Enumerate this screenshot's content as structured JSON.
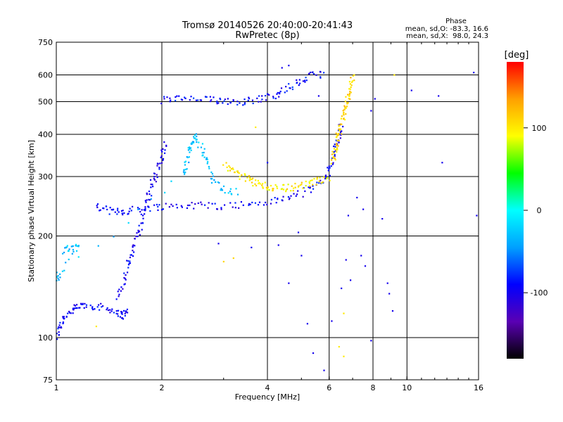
{
  "chart_data": {
    "type": "scatter",
    "title": "Tromsø 20140526 20:40:00-20:41:43",
    "subtitle": "RwPretec (8p)",
    "xlabel": "Frequency [MHz]",
    "ylabel": "Stationary phase Virtual Height [km]",
    "xscale": "log",
    "yscale": "log",
    "xlim": [
      1,
      16
    ],
    "ylim": [
      75,
      750
    ],
    "xticks": [
      1,
      2,
      4,
      6,
      8,
      10,
      16
    ],
    "xtick_labels": [
      "1",
      "2",
      "4",
      "6",
      "8",
      "10",
      "16"
    ],
    "yticks": [
      75,
      100,
      200,
      300,
      400,
      500,
      600,
      750
    ],
    "ytick_labels": [
      "75",
      "100",
      "200",
      "300",
      "400",
      "500",
      "600",
      "750"
    ],
    "x_gridlines": [
      2,
      4,
      6,
      8,
      10
    ],
    "y_gridlines": [
      100,
      200,
      300,
      400,
      500,
      600
    ],
    "grid": true,
    "phase_stats": {
      "heading": "Phase",
      "line_o": "mean, sd,O: -83.3, 16.6",
      "line_x": "mean, sd,X:  98.0, 24.3"
    },
    "colorbar": {
      "label": "[deg]",
      "range": [
        -180,
        180
      ],
      "ticks": [
        100,
        0,
        -100
      ],
      "tick_labels": [
        "100",
        "0",
        "-100"
      ],
      "colors": [
        "#000000",
        "#5a00b4",
        "#0000ff",
        "#00a0ff",
        "#00ffff",
        "#00ff00",
        "#ffff00",
        "#ffa000",
        "#ff0000"
      ]
    },
    "traces": [
      {
        "id": "low-cusp",
        "phase": -95,
        "points": [
          [
            1.0,
            100
          ],
          [
            1.02,
            108
          ],
          [
            1.05,
            115
          ],
          [
            1.1,
            120
          ],
          [
            1.15,
            123
          ],
          [
            1.2,
            125
          ],
          [
            1.3,
            124
          ],
          [
            1.4,
            122
          ],
          [
            1.5,
            118
          ],
          [
            1.55,
            116
          ],
          [
            1.6,
            122
          ]
        ]
      },
      {
        "id": "E-spread",
        "phase": -98,
        "points": [
          [
            1.5,
            130
          ],
          [
            1.55,
            145
          ],
          [
            1.6,
            165
          ],
          [
            1.65,
            180
          ],
          [
            1.7,
            200
          ],
          [
            1.75,
            220
          ],
          [
            1.8,
            245
          ],
          [
            1.85,
            270
          ],
          [
            1.9,
            295
          ],
          [
            1.95,
            320
          ],
          [
            2.0,
            345
          ],
          [
            2.05,
            380
          ]
        ]
      },
      {
        "id": "F-low",
        "phase": -95,
        "points": [
          [
            1.3,
            245
          ],
          [
            1.4,
            238
          ],
          [
            1.5,
            236
          ],
          [
            1.6,
            238
          ],
          [
            1.8,
            242
          ],
          [
            2.0,
            245
          ],
          [
            2.3,
            246
          ],
          [
            2.6,
            247
          ],
          [
            3.0,
            246
          ],
          [
            3.5,
            248
          ],
          [
            4.0,
            252
          ],
          [
            4.5,
            258
          ],
          [
            5.0,
            268
          ],
          [
            5.5,
            282
          ],
          [
            5.9,
            300
          ],
          [
            6.1,
            330
          ],
          [
            6.3,
            370
          ],
          [
            6.4,
            400
          ],
          [
            6.5,
            430
          ]
        ]
      },
      {
        "id": "F-o-upper",
        "phase": -90,
        "points": [
          [
            2.0,
            505
          ],
          [
            2.2,
            510
          ],
          [
            2.5,
            508
          ],
          [
            2.8,
            505
          ],
          [
            3.0,
            505
          ],
          [
            3.3,
            500
          ],
          [
            3.6,
            505
          ],
          [
            4.0,
            515
          ],
          [
            4.3,
            530
          ],
          [
            4.6,
            550
          ],
          [
            5.0,
            575
          ],
          [
            5.4,
            600
          ],
          [
            5.8,
            605
          ]
        ]
      },
      {
        "id": "F-x-warm",
        "phase": 100,
        "points": [
          [
            3.0,
            325
          ],
          [
            3.2,
            310
          ],
          [
            3.4,
            300
          ],
          [
            3.6,
            292
          ],
          [
            3.8,
            285
          ],
          [
            4.0,
            280
          ],
          [
            4.2,
            278
          ],
          [
            4.5,
            278
          ],
          [
            4.8,
            280
          ],
          [
            5.2,
            285
          ],
          [
            5.6,
            292
          ],
          [
            6.0,
            300
          ]
        ]
      },
      {
        "id": "F-x-cusp",
        "phase": 110,
        "points": [
          [
            6.1,
            330
          ],
          [
            6.2,
            350
          ],
          [
            6.3,
            380
          ],
          [
            6.4,
            400
          ],
          [
            6.5,
            430
          ],
          [
            6.6,
            460
          ],
          [
            6.7,
            490
          ],
          [
            6.8,
            520
          ],
          [
            6.9,
            560
          ],
          [
            7.0,
            600
          ]
        ]
      },
      {
        "id": "E-cyan",
        "phase": -30,
        "points": [
          [
            1.05,
            180
          ],
          [
            1.1,
            185
          ],
          [
            1.15,
            186
          ],
          [
            1.0,
            150
          ],
          [
            1.02,
            155
          ],
          [
            2.3,
            300
          ],
          [
            2.35,
            330
          ],
          [
            2.4,
            360
          ],
          [
            2.45,
            380
          ],
          [
            2.5,
            395
          ],
          [
            2.6,
            360
          ],
          [
            2.7,
            330
          ],
          [
            2.8,
            290
          ],
          [
            3.0,
            275
          ],
          [
            3.3,
            270
          ]
        ]
      }
    ],
    "scattered_points": [
      {
        "x": 4.4,
        "y": 630,
        "phase": -100
      },
      {
        "x": 4.6,
        "y": 640,
        "phase": -100
      },
      {
        "x": 3.7,
        "y": 420,
        "phase": 100
      },
      {
        "x": 4.0,
        "y": 330,
        "phase": -95
      },
      {
        "x": 5.6,
        "y": 520,
        "phase": -100
      },
      {
        "x": 6.8,
        "y": 230,
        "phase": -100
      },
      {
        "x": 7.2,
        "y": 260,
        "phase": -100
      },
      {
        "x": 7.5,
        "y": 240,
        "phase": -100
      },
      {
        "x": 7.9,
        "y": 470,
        "phase": -100
      },
      {
        "x": 8.1,
        "y": 510,
        "phase": -100
      },
      {
        "x": 9.2,
        "y": 600,
        "phase": 100
      },
      {
        "x": 10.3,
        "y": 540,
        "phase": -100
      },
      {
        "x": 12.3,
        "y": 520,
        "phase": -100
      },
      {
        "x": 12.6,
        "y": 330,
        "phase": -100
      },
      {
        "x": 15.8,
        "y": 230,
        "phase": -100
      },
      {
        "x": 15.5,
        "y": 610,
        "phase": -100
      },
      {
        "x": 8.5,
        "y": 225,
        "phase": -100
      },
      {
        "x": 8.9,
        "y": 135,
        "phase": -100
      },
      {
        "x": 8.8,
        "y": 145,
        "phase": -100
      },
      {
        "x": 9.1,
        "y": 120,
        "phase": -100
      },
      {
        "x": 7.4,
        "y": 175,
        "phase": -100
      },
      {
        "x": 7.6,
        "y": 163,
        "phase": -100
      },
      {
        "x": 6.7,
        "y": 170,
        "phase": -100
      },
      {
        "x": 6.5,
        "y": 140,
        "phase": -100
      },
      {
        "x": 6.9,
        "y": 148,
        "phase": -100
      },
      {
        "x": 6.1,
        "y": 112,
        "phase": -100
      },
      {
        "x": 6.6,
        "y": 118,
        "phase": 100
      },
      {
        "x": 5.2,
        "y": 110,
        "phase": -100
      },
      {
        "x": 5.4,
        "y": 90,
        "phase": -100
      },
      {
        "x": 5.8,
        "y": 80,
        "phase": -100
      },
      {
        "x": 6.4,
        "y": 94,
        "phase": 100
      },
      {
        "x": 7.9,
        "y": 98,
        "phase": -100
      },
      {
        "x": 4.6,
        "y": 145,
        "phase": -100
      },
      {
        "x": 4.3,
        "y": 188,
        "phase": -100
      },
      {
        "x": 3.2,
        "y": 172,
        "phase": 110
      },
      {
        "x": 3.0,
        "y": 168,
        "phase": 110
      },
      {
        "x": 5.0,
        "y": 175,
        "phase": -100
      },
      {
        "x": 4.9,
        "y": 205,
        "phase": -100
      },
      {
        "x": 2.9,
        "y": 190,
        "phase": -100
      },
      {
        "x": 3.6,
        "y": 185,
        "phase": -100
      },
      {
        "x": 1.3,
        "y": 108,
        "phase": 100
      },
      {
        "x": 6.6,
        "y": 88,
        "phase": 100
      }
    ]
  }
}
